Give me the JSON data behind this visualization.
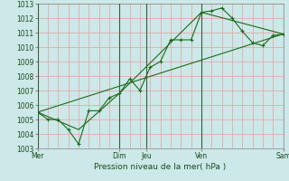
{
  "xlabel": "Pression niveau de la mer( hPa )",
  "ylim": [
    1003,
    1013
  ],
  "yticks": [
    1003,
    1004,
    1005,
    1006,
    1007,
    1008,
    1009,
    1010,
    1011,
    1012,
    1013
  ],
  "xtick_labels": [
    "Mer",
    "Dim",
    "Jeu",
    "Ven",
    "Sam"
  ],
  "xtick_positions": [
    0.0,
    0.333,
    0.444,
    0.667,
    1.0
  ],
  "vline_x": [
    0.0,
    0.333,
    0.444,
    0.667,
    1.0
  ],
  "background_color": "#cce8e8",
  "grid_color_h": "#e8a0a0",
  "grid_color_v": "#e8a0a0",
  "line_color": "#1a6b1a",
  "marker_color": "#1a6b1a",
  "series1_x": [
    0.0,
    0.042,
    0.083,
    0.125,
    0.167,
    0.208,
    0.25,
    0.292,
    0.333,
    0.375,
    0.417,
    0.458,
    0.5,
    0.542,
    0.583,
    0.625,
    0.667,
    0.708,
    0.75,
    0.792,
    0.833,
    0.875,
    0.917,
    0.958,
    1.0
  ],
  "series1_y": [
    1005.5,
    1005.0,
    1005.0,
    1004.3,
    1003.3,
    1005.6,
    1005.6,
    1006.5,
    1006.8,
    1007.8,
    1007.0,
    1008.6,
    1009.0,
    1010.5,
    1010.5,
    1010.5,
    1012.4,
    1012.5,
    1012.7,
    1012.0,
    1011.1,
    1010.3,
    1010.1,
    1010.8,
    1010.9
  ],
  "series2_x": [
    0.0,
    0.167,
    0.333,
    0.667,
    1.0
  ],
  "series2_y": [
    1005.5,
    1004.3,
    1006.8,
    1012.4,
    1010.9
  ],
  "series3_x": [
    0.0,
    1.0
  ],
  "series3_y": [
    1005.5,
    1010.9
  ]
}
